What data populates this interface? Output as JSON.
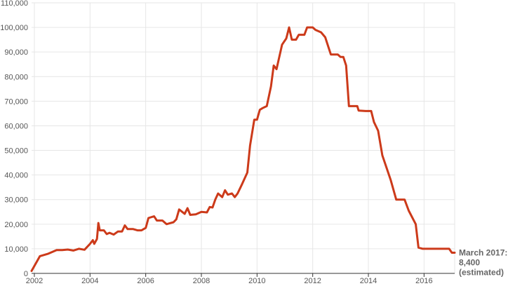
{
  "chart_data": {
    "type": "line",
    "title": "",
    "xlabel": "",
    "ylabel": "",
    "xlim": [
      2001.9,
      2017.1
    ],
    "ylim": [
      0,
      110000
    ],
    "grid": true,
    "legend": "none",
    "colors": {
      "series": "#cc3a1a",
      "grid": "#e6e6e6",
      "text": "#555555",
      "annotation": "#666666"
    },
    "x_ticks": [
      2002,
      2004,
      2006,
      2008,
      2010,
      2012,
      2014,
      2016
    ],
    "x_tick_labels": [
      "2002",
      "2004",
      "2006",
      "2008",
      "2010",
      "2012",
      "2014",
      "2016"
    ],
    "y_ticks": [
      0,
      10000,
      20000,
      30000,
      40000,
      50000,
      60000,
      70000,
      80000,
      90000,
      100000,
      110000
    ],
    "y_tick_labels": [
      "0",
      "10,000",
      "20,000",
      "30,000",
      "40,000",
      "50,000",
      "60,000",
      "70,000",
      "80,000",
      "90,000",
      "100,000",
      "110,000"
    ],
    "series": [
      {
        "points": [
          [
            2001.9,
            1000
          ],
          [
            2002.2,
            7000
          ],
          [
            2002.5,
            8000
          ],
          [
            2002.8,
            9500
          ],
          [
            2003.0,
            9500
          ],
          [
            2003.2,
            9700
          ],
          [
            2003.4,
            9300
          ],
          [
            2003.6,
            10000
          ],
          [
            2003.8,
            9600
          ],
          [
            2004.0,
            12000
          ],
          [
            2004.1,
            13500
          ],
          [
            2004.15,
            12000
          ],
          [
            2004.25,
            14000
          ],
          [
            2004.3,
            20500
          ],
          [
            2004.35,
            17500
          ],
          [
            2004.5,
            17500
          ],
          [
            2004.6,
            16000
          ],
          [
            2004.7,
            16500
          ],
          [
            2004.85,
            15800
          ],
          [
            2005.0,
            17000
          ],
          [
            2005.15,
            17000
          ],
          [
            2005.25,
            19500
          ],
          [
            2005.35,
            18000
          ],
          [
            2005.55,
            18000
          ],
          [
            2005.7,
            17500
          ],
          [
            2005.85,
            17500
          ],
          [
            2006.0,
            18500
          ],
          [
            2006.1,
            22500
          ],
          [
            2006.3,
            23200
          ],
          [
            2006.4,
            21500
          ],
          [
            2006.6,
            21500
          ],
          [
            2006.75,
            20000
          ],
          [
            2006.9,
            20500
          ],
          [
            2007.0,
            20800
          ],
          [
            2007.1,
            22000
          ],
          [
            2007.2,
            26000
          ],
          [
            2007.4,
            24200
          ],
          [
            2007.5,
            26500
          ],
          [
            2007.6,
            23800
          ],
          [
            2007.8,
            24000
          ],
          [
            2008.0,
            25000
          ],
          [
            2008.2,
            24800
          ],
          [
            2008.3,
            27000
          ],
          [
            2008.4,
            26800
          ],
          [
            2008.5,
            30000
          ],
          [
            2008.6,
            32500
          ],
          [
            2008.75,
            31000
          ],
          [
            2008.85,
            33800
          ],
          [
            2008.95,
            32000
          ],
          [
            2009.1,
            32500
          ],
          [
            2009.2,
            31000
          ],
          [
            2009.3,
            32500
          ],
          [
            2009.45,
            36000
          ],
          [
            2009.65,
            41000
          ],
          [
            2009.75,
            52000
          ],
          [
            2009.9,
            62500
          ],
          [
            2010.0,
            62500
          ],
          [
            2010.1,
            66500
          ],
          [
            2010.2,
            67200
          ],
          [
            2010.35,
            68000
          ],
          [
            2010.5,
            76000
          ],
          [
            2010.6,
            84500
          ],
          [
            2010.7,
            83000
          ],
          [
            2010.9,
            93000
          ],
          [
            2011.05,
            95500
          ],
          [
            2011.15,
            100000
          ],
          [
            2011.25,
            95000
          ],
          [
            2011.4,
            95000
          ],
          [
            2011.5,
            97000
          ],
          [
            2011.7,
            97000
          ],
          [
            2011.8,
            100000
          ],
          [
            2012.0,
            100000
          ],
          [
            2012.1,
            99000
          ],
          [
            2012.3,
            98000
          ],
          [
            2012.45,
            96000
          ],
          [
            2012.65,
            89000
          ],
          [
            2012.9,
            89000
          ],
          [
            2013.0,
            88000
          ],
          [
            2013.1,
            88000
          ],
          [
            2013.2,
            84500
          ],
          [
            2013.3,
            68000
          ],
          [
            2013.6,
            68000
          ],
          [
            2013.65,
            66200
          ],
          [
            2013.9,
            66000
          ],
          [
            2014.1,
            66000
          ],
          [
            2014.2,
            61500
          ],
          [
            2014.35,
            58000
          ],
          [
            2014.5,
            48000
          ],
          [
            2014.8,
            38000
          ],
          [
            2015.0,
            30000
          ],
          [
            2015.3,
            30000
          ],
          [
            2015.45,
            25500
          ],
          [
            2015.7,
            20000
          ],
          [
            2015.8,
            10500
          ],
          [
            2015.95,
            10000
          ],
          [
            2016.9,
            10000
          ],
          [
            2017.0,
            8400
          ],
          [
            2017.1,
            8400
          ]
        ]
      }
    ],
    "annotation": {
      "lines": [
        "March 2017:",
        "8,400",
        "(estimated)"
      ]
    }
  }
}
